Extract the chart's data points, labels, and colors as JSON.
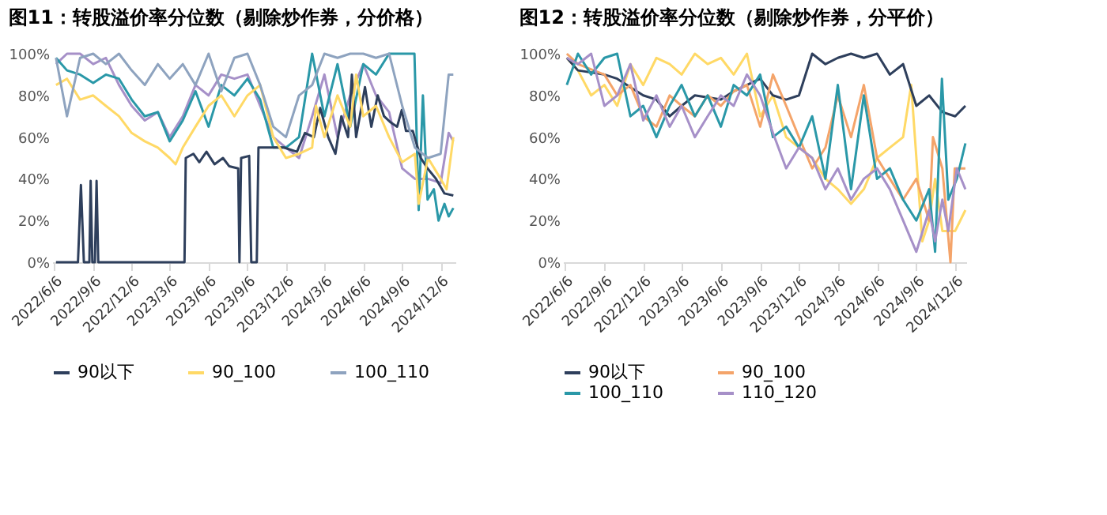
{
  "chart_data": [
    {
      "type": "line",
      "title": "图11：转股溢价率分位数（剔除炒作券，分价格）",
      "legend": "bottom",
      "grid": false,
      "xlim": [
        "2022-06-01",
        "2025-01-10"
      ],
      "xticks": [
        {
          "value": "2022-06-06",
          "label": "2022/6/6"
        },
        {
          "value": "2022-09-06",
          "label": "2022/9/6"
        },
        {
          "value": "2022-12-06",
          "label": "2022/12/6"
        },
        {
          "value": "2023-03-06",
          "label": "2023/3/6"
        },
        {
          "value": "2023-06-06",
          "label": "2023/6/6"
        },
        {
          "value": "2023-09-06",
          "label": "2023/9/6"
        },
        {
          "value": "2023-12-06",
          "label": "2023/12/6"
        },
        {
          "value": "2024-03-06",
          "label": "2024/3/6"
        },
        {
          "value": "2024-06-06",
          "label": "2024/6/6"
        },
        {
          "value": "2024-09-06",
          "label": "2024/9/6"
        },
        {
          "value": "2024-12-06",
          "label": "2024/12/6"
        }
      ],
      "ylim": [
        0,
        100
      ],
      "yticks": [
        {
          "value": 0,
          "label": "0%"
        },
        {
          "value": 20,
          "label": "20%"
        },
        {
          "value": 40,
          "label": "40%"
        },
        {
          "value": 60,
          "label": "60%"
        },
        {
          "value": 80,
          "label": "80%"
        },
        {
          "value": 100,
          "label": "100%"
        }
      ],
      "series": [
        {
          "color": "#a690c8",
          "x": [
            "2022-06-10",
            "2022-07-06",
            "2022-08-06",
            "2022-09-06",
            "2022-10-06",
            "2022-11-06",
            "2022-12-06",
            "2023-01-06",
            "2023-02-06",
            "2023-03-06",
            "2023-04-06",
            "2023-05-06",
            "2023-06-06",
            "2023-07-06",
            "2023-08-06",
            "2023-09-06",
            "2023-10-06",
            "2023-11-06",
            "2023-12-06",
            "2024-01-06",
            "2024-02-06",
            "2024-03-06",
            "2024-04-06",
            "2024-05-06",
            "2024-06-06",
            "2024-07-06",
            "2024-08-06",
            "2024-09-06",
            "2024-10-06",
            "2024-11-06",
            "2024-12-06",
            "2024-12-25",
            "2025-01-05"
          ],
          "values": [
            95,
            100,
            100,
            95,
            98,
            85,
            75,
            68,
            72,
            60,
            70,
            85,
            80,
            90,
            88,
            90,
            75,
            60,
            55,
            50,
            70,
            90,
            60,
            80,
            95,
            80,
            72,
            45,
            40,
            40,
            38,
            62,
            58
          ]
        },
        {
          "color": "#2a98a8",
          "x": [
            "2022-06-10",
            "2022-07-06",
            "2022-08-06",
            "2022-09-06",
            "2022-10-06",
            "2022-11-06",
            "2022-12-06",
            "2023-01-06",
            "2023-02-06",
            "2023-03-06",
            "2023-04-06",
            "2023-05-06",
            "2023-06-06",
            "2023-07-06",
            "2023-08-06",
            "2023-09-06",
            "2023-10-06",
            "2023-11-06",
            "2023-12-06",
            "2024-01-06",
            "2024-02-06",
            "2024-03-06",
            "2024-04-06",
            "2024-05-06",
            "2024-06-06",
            "2024-07-06",
            "2024-08-06",
            "2024-09-06",
            "2024-10-05",
            "2024-10-15",
            "2024-10-25",
            "2024-11-05",
            "2024-11-20",
            "2024-12-01",
            "2024-12-15",
            "2024-12-25",
            "2025-01-05"
          ],
          "values": [
            98,
            92,
            90,
            86,
            90,
            88,
            78,
            70,
            72,
            58,
            68,
            82,
            65,
            85,
            80,
            88,
            78,
            55,
            55,
            60,
            100,
            70,
            95,
            65,
            95,
            90,
            100,
            100,
            100,
            25,
            80,
            30,
            35,
            20,
            28,
            22,
            26
          ]
        },
        {
          "name": "90以下",
          "color": "#2e3f5c",
          "x": [
            "2022-06-10",
            "2022-08-01",
            "2022-08-08",
            "2022-08-15",
            "2022-08-28",
            "2022-08-31",
            "2022-09-04",
            "2022-09-10",
            "2022-09-14",
            "2022-09-18",
            "2023-04-10",
            "2023-04-13",
            "2023-05-01",
            "2023-05-15",
            "2023-06-01",
            "2023-06-20",
            "2023-07-10",
            "2023-07-25",
            "2023-08-15",
            "2023-08-18",
            "2023-08-22",
            "2023-09-10",
            "2023-09-15",
            "2023-09-28",
            "2023-10-02",
            "2023-11-01",
            "2023-12-01",
            "2024-01-01",
            "2024-01-20",
            "2024-02-10",
            "2024-02-25",
            "2024-03-15",
            "2024-04-01",
            "2024-04-15",
            "2024-05-01",
            "2024-05-10",
            "2024-05-20",
            "2024-06-10",
            "2024-06-25",
            "2024-07-10",
            "2024-07-25",
            "2024-08-10",
            "2024-08-25",
            "2024-09-05",
            "2024-09-15",
            "2024-10-01",
            "2024-10-20",
            "2024-11-05",
            "2024-11-25",
            "2024-12-15",
            "2025-01-05"
          ],
          "values": [
            0,
            0,
            37,
            0,
            0,
            39,
            0,
            0,
            39,
            0,
            0,
            50,
            52,
            48,
            53,
            47,
            50,
            46,
            45,
            0,
            50,
            51,
            0,
            0,
            55,
            55,
            55,
            53,
            62,
            60,
            74,
            60,
            52,
            70,
            60,
            90,
            60,
            84,
            65,
            80,
            70,
            67,
            65,
            73,
            63,
            63,
            50,
            45,
            40,
            33,
            32
          ]
        },
        {
          "name": "90_100",
          "color": "#ffd966",
          "x": [
            "2022-06-10",
            "2022-07-06",
            "2022-08-06",
            "2022-09-06",
            "2022-10-06",
            "2022-11-06",
            "2022-12-06",
            "2023-01-06",
            "2023-02-06",
            "2023-03-06",
            "2023-03-20",
            "2023-04-06",
            "2023-05-06",
            "2023-06-06",
            "2023-07-06",
            "2023-08-06",
            "2023-09-06",
            "2023-10-06",
            "2023-11-06",
            "2023-12-06",
            "2024-01-06",
            "2024-02-06",
            "2024-02-15",
            "2024-03-06",
            "2024-04-06",
            "2024-05-06",
            "2024-05-20",
            "2024-06-06",
            "2024-07-06",
            "2024-08-06",
            "2024-09-06",
            "2024-10-06",
            "2024-10-15",
            "2024-11-06",
            "2024-12-06",
            "2024-12-20",
            "2025-01-05"
          ],
          "values": [
            85,
            88,
            78,
            80,
            75,
            70,
            62,
            58,
            55,
            50,
            47,
            55,
            65,
            75,
            80,
            70,
            80,
            85,
            60,
            50,
            52,
            55,
            75,
            60,
            80,
            65,
            90,
            70,
            75,
            60,
            48,
            52,
            28,
            50,
            40,
            35,
            60
          ]
        },
        {
          "name": "100_110",
          "color": "#8ea3bf",
          "x": [
            "2022-06-10",
            "2022-07-06",
            "2022-08-06",
            "2022-09-06",
            "2022-10-06",
            "2022-11-06",
            "2022-12-06",
            "2023-01-06",
            "2023-02-06",
            "2023-03-06",
            "2023-04-06",
            "2023-05-06",
            "2023-06-06",
            "2023-07-06",
            "2023-08-06",
            "2023-09-06",
            "2023-10-06",
            "2023-11-06",
            "2023-12-06",
            "2024-01-06",
            "2024-02-06",
            "2024-03-06",
            "2024-04-06",
            "2024-05-06",
            "2024-06-06",
            "2024-07-06",
            "2024-08-06",
            "2024-09-06",
            "2024-10-06",
            "2024-11-06",
            "2024-12-06",
            "2024-12-25",
            "2025-01-05"
          ],
          "values": [
            98,
            70,
            98,
            100,
            95,
            100,
            92,
            85,
            95,
            88,
            95,
            85,
            100,
            82,
            98,
            100,
            85,
            65,
            60,
            80,
            85,
            100,
            98,
            100,
            100,
            98,
            100,
            75,
            55,
            50,
            52,
            90,
            90
          ]
        }
      ]
    },
    {
      "type": "line",
      "title": "图12：转股溢价率分位数（剔除炒作券，分平价）",
      "legend": "bottom",
      "grid": false,
      "xlim": [
        "2022-06-01",
        "2025-01-01"
      ],
      "xticks": [
        {
          "value": "2022-06-06",
          "label": "2022/6/6"
        },
        {
          "value": "2022-09-06",
          "label": "2022/9/6"
        },
        {
          "value": "2022-12-06",
          "label": "2022/12/6"
        },
        {
          "value": "2023-03-06",
          "label": "2023/3/6"
        },
        {
          "value": "2023-06-06",
          "label": "2023/6/6"
        },
        {
          "value": "2023-09-06",
          "label": "2023/9/6"
        },
        {
          "value": "2023-12-06",
          "label": "2023/12/6"
        },
        {
          "value": "2024-03-06",
          "label": "2024/3/6"
        },
        {
          "value": "2024-06-06",
          "label": "2024/6/6"
        },
        {
          "value": "2024-09-06",
          "label": "2024/9/6"
        },
        {
          "value": "2024-12-06",
          "label": "2024/12/6"
        }
      ],
      "ylim": [
        0,
        100
      ],
      "yticks": [
        {
          "value": 0,
          "label": "0%"
        },
        {
          "value": 20,
          "label": "20%"
        },
        {
          "value": 40,
          "label": "40%"
        },
        {
          "value": 60,
          "label": "60%"
        },
        {
          "value": 80,
          "label": "80%"
        },
        {
          "value": 100,
          "label": "100%"
        }
      ],
      "series": [
        {
          "color": "#ffd966",
          "x": [
            "2022-06-10",
            "2022-07-06",
            "2022-08-06",
            "2022-09-06",
            "2022-10-06",
            "2022-11-06",
            "2022-12-06",
            "2023-01-06",
            "2023-02-06",
            "2023-03-06",
            "2023-04-06",
            "2023-05-06",
            "2023-06-06",
            "2023-07-06",
            "2023-08-06",
            "2023-09-06",
            "2023-10-06",
            "2023-11-06",
            "2023-12-06",
            "2024-01-06",
            "2024-02-06",
            "2024-03-06",
            "2024-04-06",
            "2024-05-06",
            "2024-06-06",
            "2024-07-06",
            "2024-08-06",
            "2024-08-25",
            "2024-09-20",
            "2024-10-06",
            "2024-10-20",
            "2024-11-06",
            "2024-12-06",
            "2024-12-30"
          ],
          "values": [
            98,
            92,
            80,
            85,
            75,
            95,
            85,
            98,
            95,
            90,
            100,
            95,
            98,
            90,
            100,
            70,
            80,
            60,
            55,
            50,
            40,
            35,
            28,
            35,
            50,
            55,
            60,
            85,
            10,
            20,
            40,
            15,
            15,
            25
          ]
        },
        {
          "name": "90以下",
          "color": "#2e3f5c",
          "x": [
            "2022-06-10",
            "2022-07-06",
            "2022-09-06",
            "2022-10-06",
            "2022-12-06",
            "2023-01-06",
            "2023-02-06",
            "2023-03-06",
            "2023-04-06",
            "2023-06-06",
            "2023-07-06",
            "2023-08-06",
            "2023-09-06",
            "2023-10-06",
            "2023-11-06",
            "2023-12-06",
            "2024-01-06",
            "2024-02-06",
            "2024-03-06",
            "2024-04-06",
            "2024-05-06",
            "2024-06-06",
            "2024-07-06",
            "2024-08-06",
            "2024-09-06",
            "2024-10-06",
            "2024-11-06",
            "2024-12-06",
            "2024-12-30"
          ],
          "values": [
            98,
            92,
            90,
            88,
            80,
            78,
            70,
            75,
            80,
            78,
            82,
            85,
            88,
            80,
            78,
            80,
            100,
            95,
            98,
            100,
            98,
            100,
            90,
            95,
            75,
            80,
            72,
            70,
            75
          ]
        },
        {
          "name": "90_100",
          "color": "#f4a46a",
          "x": [
            "2022-06-10",
            "2022-07-06",
            "2022-09-06",
            "2022-10-06",
            "2022-11-06",
            "2022-12-06",
            "2023-01-06",
            "2023-02-06",
            "2023-03-06",
            "2023-04-06",
            "2023-05-06",
            "2023-06-06",
            "2023-07-06",
            "2023-08-06",
            "2023-09-06",
            "2023-10-06",
            "2023-11-06",
            "2023-12-06",
            "2024-01-06",
            "2024-02-06",
            "2024-03-06",
            "2024-04-06",
            "2024-05-06",
            "2024-06-06",
            "2024-07-06",
            "2024-08-06",
            "2024-09-06",
            "2024-10-06",
            "2024-10-15",
            "2024-11-06",
            "2024-11-25",
            "2024-12-05",
            "2024-12-30"
          ],
          "values": [
            100,
            95,
            90,
            80,
            85,
            70,
            65,
            80,
            75,
            70,
            80,
            75,
            82,
            85,
            65,
            90,
            75,
            60,
            45,
            55,
            80,
            60,
            85,
            50,
            40,
            30,
            40,
            20,
            60,
            45,
            0,
            45,
            45
          ]
        },
        {
          "name": "100_110",
          "color": "#2a98a8",
          "x": [
            "2022-06-10",
            "2022-07-06",
            "2022-08-06",
            "2022-09-06",
            "2022-10-06",
            "2022-11-06",
            "2022-12-06",
            "2023-01-06",
            "2023-02-06",
            "2023-03-06",
            "2023-04-06",
            "2023-05-06",
            "2023-06-06",
            "2023-07-06",
            "2023-08-06",
            "2023-09-06",
            "2023-10-06",
            "2023-11-06",
            "2023-12-06",
            "2024-01-06",
            "2024-02-06",
            "2024-03-06",
            "2024-04-06",
            "2024-05-06",
            "2024-06-06",
            "2024-07-06",
            "2024-08-06",
            "2024-09-06",
            "2024-10-06",
            "2024-10-20",
            "2024-11-05",
            "2024-11-20",
            "2024-12-10",
            "2024-12-30"
          ],
          "values": [
            85,
            100,
            90,
            98,
            100,
            70,
            75,
            60,
            75,
            85,
            70,
            80,
            65,
            85,
            80,
            90,
            60,
            65,
            55,
            70,
            40,
            85,
            35,
            80,
            40,
            45,
            30,
            20,
            35,
            5,
            88,
            30,
            40,
            57
          ]
        },
        {
          "name": "110_120",
          "color": "#a690c8",
          "x": [
            "2022-06-10",
            "2022-07-06",
            "2022-08-06",
            "2022-09-06",
            "2022-10-06",
            "2022-11-06",
            "2022-12-06",
            "2023-01-06",
            "2023-02-06",
            "2023-03-06",
            "2023-04-06",
            "2023-05-06",
            "2023-06-06",
            "2023-07-06",
            "2023-08-06",
            "2023-09-06",
            "2023-10-06",
            "2023-11-06",
            "2023-12-06",
            "2024-01-06",
            "2024-02-06",
            "2024-03-06",
            "2024-04-06",
            "2024-05-06",
            "2024-06-06",
            "2024-07-06",
            "2024-08-06",
            "2024-09-06",
            "2024-10-06",
            "2024-10-20",
            "2024-11-06",
            "2024-11-20",
            "2024-12-10",
            "2024-12-30"
          ],
          "values": [
            98,
            95,
            100,
            75,
            80,
            95,
            68,
            80,
            65,
            75,
            60,
            70,
            80,
            75,
            90,
            80,
            62,
            45,
            55,
            50,
            35,
            45,
            30,
            40,
            45,
            35,
            20,
            5,
            25,
            10,
            30,
            15,
            45,
            35
          ]
        }
      ]
    }
  ]
}
